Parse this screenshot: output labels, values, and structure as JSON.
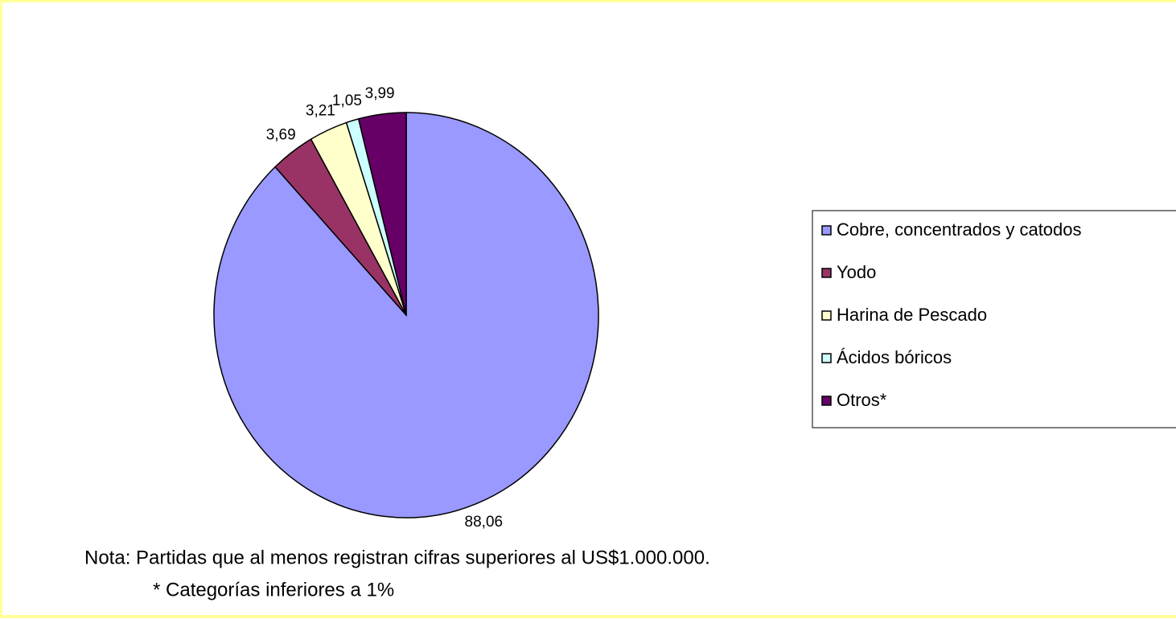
{
  "chart_data": {
    "type": "pie",
    "categories": [
      "Cobre, concentrados y catodos",
      "Yodo",
      "Harina de Pescado",
      "Ácidos bóricos",
      "Otros*"
    ],
    "values": [
      88.06,
      3.69,
      3.21,
      1.05,
      3.99
    ],
    "value_labels": [
      "88,06",
      "3,69",
      "3,21",
      "1,05",
      "3,99"
    ],
    "colors": [
      "#9999ff",
      "#993366",
      "#ffffcc",
      "#ccffff",
      "#660066"
    ],
    "annotations": [
      "Nota: Partidas que al menos registran cifras superiores al  US$1.000.000.",
      "* Categorías inferiores a 1%"
    ]
  }
}
